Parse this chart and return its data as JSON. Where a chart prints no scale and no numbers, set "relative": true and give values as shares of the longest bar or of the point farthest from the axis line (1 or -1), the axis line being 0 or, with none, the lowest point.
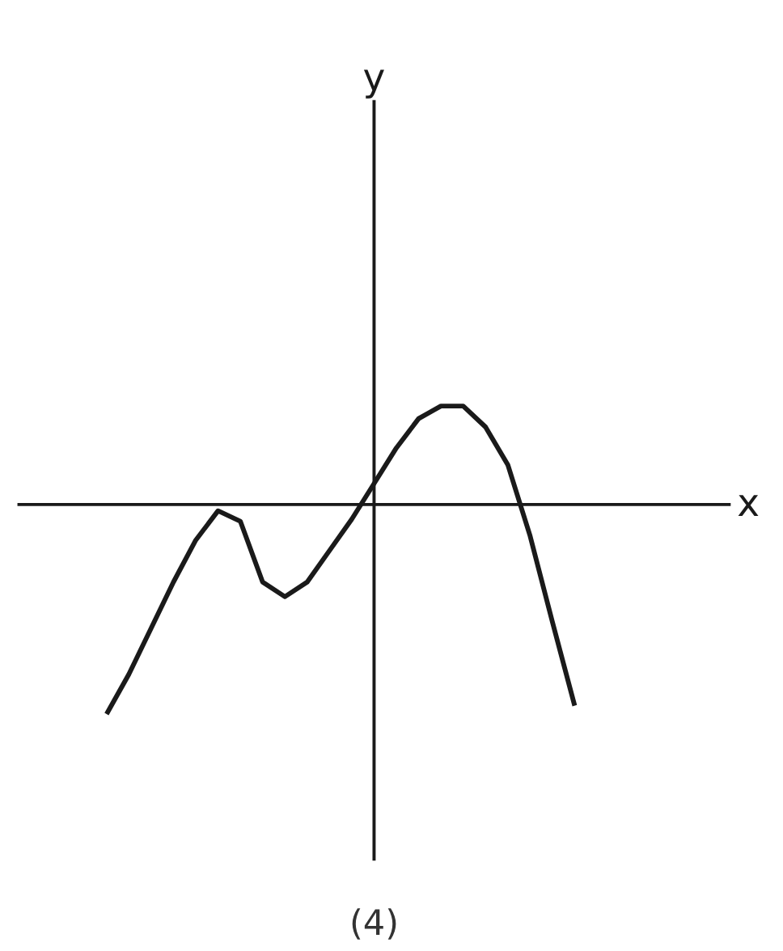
{
  "chart_data": {
    "type": "line",
    "relative": true,
    "tick_labels": false,
    "marker": "none",
    "line_style": "solid",
    "xlabel": "x",
    "categories": [
      null,
      null,
      null,
      null,
      null,
      null,
      null,
      null,
      null,
      null,
      null,
      null,
      null,
      null,
      null,
      null,
      null,
      null,
      null,
      null,
      null,
      null,
      null,
      null,
      null,
      null,
      null,
      null,
      null,
      null,
      null,
      null,
      null
    ],
    "series": [
      {
        "color": "#1a1a1a",
        "values": [
          null,
          null,
          null,
          null,
          -1.0,
          -0.81,
          -0.59,
          -0.37,
          -0.17,
          -0.03,
          -0.08,
          -0.37,
          -0.44,
          -0.37,
          -0.22,
          -0.07,
          0.1,
          0.27,
          0.41,
          0.47,
          0.47,
          0.37,
          0.19,
          -0.15,
          -0.56,
          -0.96,
          null,
          null,
          null,
          null,
          null,
          null,
          null
        ]
      }
    ],
    "annotations": [
      "y",
      "(4)"
    ]
  }
}
